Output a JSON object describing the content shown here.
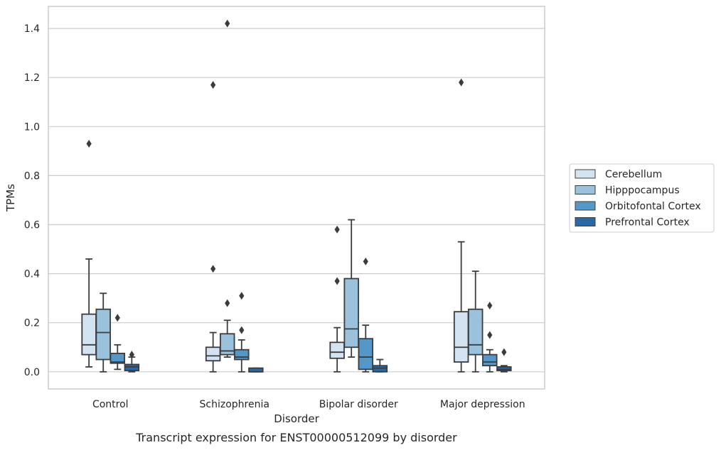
{
  "chart_data": {
    "type": "box",
    "caption": "Transcript expression for ENST00000512099 by disorder",
    "xlabel": "Disorder",
    "ylabel": "TPMs",
    "ylim": [
      -0.07,
      1.49
    ],
    "yticks": [
      0.0,
      0.2,
      0.4,
      0.6,
      0.8,
      1.0,
      1.2,
      1.4
    ],
    "ytick_labels": [
      "0.0",
      "0.2",
      "0.4",
      "0.6",
      "0.8",
      "1.0",
      "1.2",
      "1.4"
    ],
    "grid": "horizontal",
    "legend_position": "right",
    "categories": [
      "Control",
      "Schizophrenia",
      "Bipolar disorder",
      "Major depression"
    ],
    "series": [
      {
        "name": "Cerebellum",
        "color": "#d3e3f2",
        "boxes": [
          {
            "whisker_low": 0.02,
            "q1": 0.07,
            "median": 0.11,
            "q3": 0.235,
            "whisker_high": 0.46,
            "outliers": [
              0.93
            ]
          },
          {
            "whisker_low": 0.0,
            "q1": 0.045,
            "median": 0.065,
            "q3": 0.1,
            "whisker_high": 0.16,
            "outliers": [
              0.42,
              1.17
            ]
          },
          {
            "whisker_low": 0.0,
            "q1": 0.055,
            "median": 0.08,
            "q3": 0.12,
            "whisker_high": 0.18,
            "outliers": [
              0.37,
              0.58
            ]
          },
          {
            "whisker_low": 0.0,
            "q1": 0.04,
            "median": 0.1,
            "q3": 0.245,
            "whisker_high": 0.53,
            "outliers": [
              1.18
            ]
          }
        ]
      },
      {
        "name": "Hipppocampus",
        "color": "#9ac2dc",
        "boxes": [
          {
            "whisker_low": 0.0,
            "q1": 0.05,
            "median": 0.16,
            "q3": 0.255,
            "whisker_high": 0.32,
            "outliers": []
          },
          {
            "whisker_low": 0.06,
            "q1": 0.07,
            "median": 0.085,
            "q3": 0.155,
            "whisker_high": 0.21,
            "outliers": [
              0.28,
              1.42
            ]
          },
          {
            "whisker_low": 0.06,
            "q1": 0.1,
            "median": 0.175,
            "q3": 0.38,
            "whisker_high": 0.62,
            "outliers": []
          },
          {
            "whisker_low": 0.0,
            "q1": 0.07,
            "median": 0.11,
            "q3": 0.255,
            "whisker_high": 0.41,
            "outliers": []
          }
        ]
      },
      {
        "name": "Orbitofontal Cortex",
        "color": "#5398c8",
        "boxes": [
          {
            "whisker_low": 0.01,
            "q1": 0.035,
            "median": 0.04,
            "q3": 0.075,
            "whisker_high": 0.11,
            "outliers": [
              0.22
            ]
          },
          {
            "whisker_low": 0.0,
            "q1": 0.05,
            "median": 0.06,
            "q3": 0.09,
            "whisker_high": 0.13,
            "outliers": [
              0.17,
              0.31
            ]
          },
          {
            "whisker_low": 0.0,
            "q1": 0.01,
            "median": 0.06,
            "q3": 0.135,
            "whisker_high": 0.19,
            "outliers": [
              0.45
            ]
          },
          {
            "whisker_low": 0.0,
            "q1": 0.025,
            "median": 0.04,
            "q3": 0.07,
            "whisker_high": 0.09,
            "outliers": [
              0.15,
              0.27
            ]
          }
        ]
      },
      {
        "name": "Prefrontal Cortex",
        "color": "#2a69a8",
        "boxes": [
          {
            "whisker_low": 0.0,
            "q1": 0.005,
            "median": 0.02,
            "q3": 0.03,
            "whisker_high": 0.06,
            "outliers": [
              0.07
            ]
          },
          {
            "whisker_low": 0.0,
            "q1": 0.0,
            "median": 0.0,
            "q3": 0.015,
            "whisker_high": 0.015,
            "outliers": []
          },
          {
            "whisker_low": 0.0,
            "q1": 0.0,
            "median": 0.015,
            "q3": 0.025,
            "whisker_high": 0.05,
            "outliers": []
          },
          {
            "whisker_low": 0.0,
            "q1": 0.005,
            "median": 0.01,
            "q3": 0.02,
            "whisker_high": 0.025,
            "outliers": [
              0.08
            ]
          }
        ]
      }
    ]
  }
}
